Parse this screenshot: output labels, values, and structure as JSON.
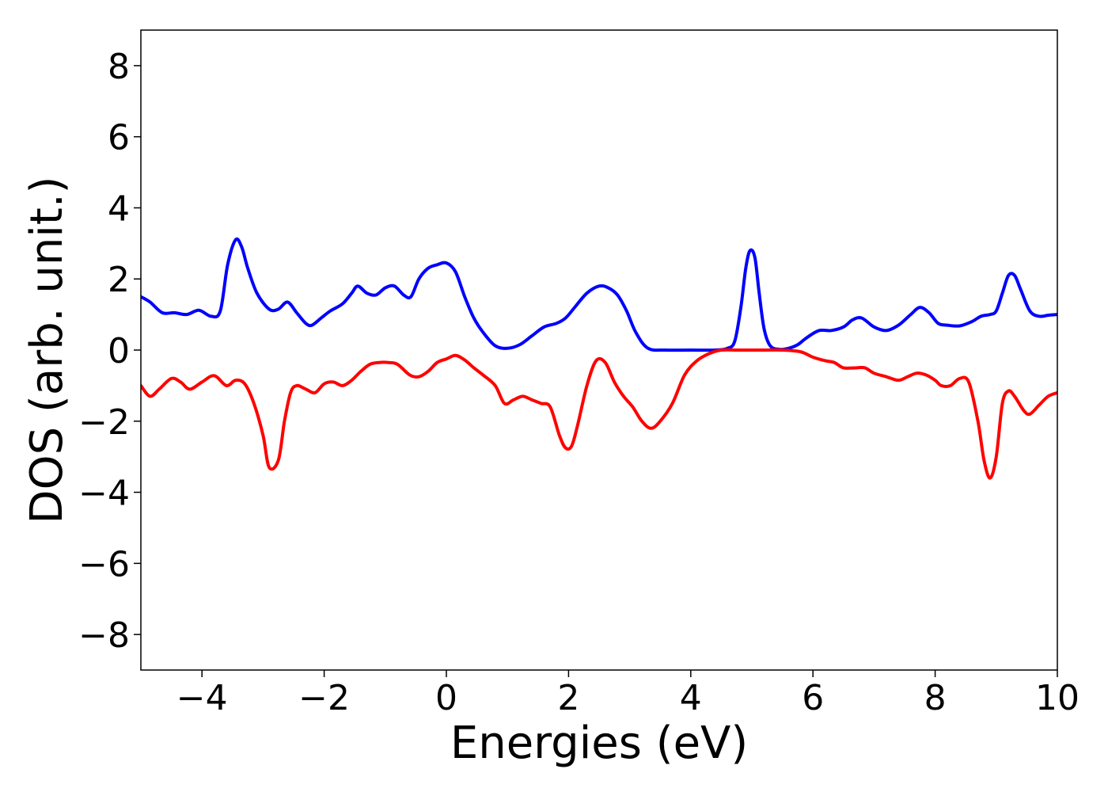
{
  "chart_data": {
    "type": "line",
    "title": "",
    "xlabel": "Energies (eV)",
    "ylabel": "DOS (arb. unit.)",
    "xlim": [
      -5,
      10
    ],
    "ylim": [
      -9,
      9
    ],
    "xticks": [
      -4,
      -2,
      0,
      2,
      4,
      6,
      8,
      10
    ],
    "xtick_labels": [
      "−4",
      "−2",
      "0",
      "2",
      "4",
      "6",
      "8",
      "10"
    ],
    "yticks": [
      -8,
      -6,
      -4,
      -2,
      0,
      2,
      4,
      6,
      8
    ],
    "ytick_labels": [
      "−8",
      "−6",
      "−4",
      "−2",
      "0",
      "2",
      "4",
      "6",
      "8"
    ],
    "grid": false,
    "legend": false,
    "series": [
      {
        "color": "#0000ff",
        "x": [
          -5.0,
          -4.85,
          -4.65,
          -4.45,
          -4.25,
          -4.05,
          -3.85,
          -3.7,
          -3.58,
          -3.45,
          -3.35,
          -3.25,
          -3.1,
          -2.9,
          -2.75,
          -2.6,
          -2.45,
          -2.3,
          -2.2,
          -2.05,
          -1.9,
          -1.7,
          -1.55,
          -1.45,
          -1.3,
          -1.15,
          -1.0,
          -0.85,
          -0.7,
          -0.58,
          -0.45,
          -0.3,
          -0.15,
          0.0,
          0.15,
          0.3,
          0.45,
          0.6,
          0.8,
          1.0,
          1.2,
          1.4,
          1.6,
          1.8,
          1.95,
          2.1,
          2.3,
          2.5,
          2.65,
          2.8,
          2.95,
          3.1,
          3.3,
          3.6,
          4.0,
          4.4,
          4.6,
          4.72,
          4.82,
          4.9,
          4.97,
          5.05,
          5.12,
          5.2,
          5.3,
          5.45,
          5.6,
          5.75,
          5.9,
          6.1,
          6.3,
          6.5,
          6.65,
          6.8,
          7.0,
          7.2,
          7.4,
          7.6,
          7.75,
          7.9,
          8.05,
          8.2,
          8.4,
          8.6,
          8.75,
          8.9,
          9.0,
          9.1,
          9.2,
          9.3,
          9.4,
          9.55,
          9.7,
          9.85,
          10.0
        ],
        "y": [
          1.5,
          1.35,
          1.05,
          1.05,
          1.0,
          1.12,
          0.95,
          1.1,
          2.4,
          3.1,
          2.9,
          2.3,
          1.6,
          1.15,
          1.15,
          1.35,
          1.05,
          0.75,
          0.7,
          0.9,
          1.1,
          1.3,
          1.6,
          1.8,
          1.6,
          1.55,
          1.75,
          1.8,
          1.55,
          1.5,
          2.0,
          2.3,
          2.4,
          2.45,
          2.2,
          1.5,
          0.9,
          0.5,
          0.12,
          0.05,
          0.15,
          0.4,
          0.65,
          0.75,
          0.9,
          1.2,
          1.6,
          1.8,
          1.75,
          1.55,
          1.1,
          0.5,
          0.05,
          0.0,
          0.0,
          0.0,
          0.05,
          0.25,
          1.2,
          2.3,
          2.8,
          2.6,
          1.6,
          0.6,
          0.12,
          0.02,
          0.05,
          0.15,
          0.35,
          0.55,
          0.55,
          0.65,
          0.85,
          0.9,
          0.65,
          0.55,
          0.7,
          1.0,
          1.2,
          1.05,
          0.75,
          0.7,
          0.68,
          0.8,
          0.95,
          1.0,
          1.1,
          1.6,
          2.1,
          2.1,
          1.7,
          1.1,
          0.95,
          0.98,
          1.0
        ]
      },
      {
        "color": "#ff0000",
        "x": [
          -5.0,
          -4.85,
          -4.7,
          -4.5,
          -4.35,
          -4.2,
          -4.0,
          -3.8,
          -3.6,
          -3.45,
          -3.3,
          -3.15,
          -3.0,
          -2.9,
          -2.75,
          -2.65,
          -2.55,
          -2.45,
          -2.3,
          -2.15,
          -2.0,
          -1.85,
          -1.7,
          -1.55,
          -1.4,
          -1.25,
          -1.1,
          -0.95,
          -0.8,
          -0.6,
          -0.45,
          -0.3,
          -0.15,
          0.0,
          0.15,
          0.3,
          0.45,
          0.6,
          0.8,
          0.95,
          1.1,
          1.25,
          1.4,
          1.55,
          1.7,
          1.85,
          1.95,
          2.05,
          2.15,
          2.3,
          2.45,
          2.6,
          2.75,
          2.9,
          3.05,
          3.2,
          3.35,
          3.5,
          3.7,
          3.9,
          4.1,
          4.3,
          4.5,
          4.8,
          5.2,
          5.5,
          5.8,
          6.0,
          6.2,
          6.35,
          6.5,
          6.7,
          6.85,
          7.0,
          7.2,
          7.4,
          7.55,
          7.7,
          7.85,
          8.0,
          8.1,
          8.25,
          8.4,
          8.55,
          8.7,
          8.8,
          8.9,
          9.0,
          9.1,
          9.2,
          9.3,
          9.45,
          9.55,
          9.7,
          9.85,
          10.0
        ],
        "y": [
          -1.0,
          -1.3,
          -1.1,
          -0.8,
          -0.9,
          -1.1,
          -0.9,
          -0.72,
          -1.0,
          -0.85,
          -0.95,
          -1.5,
          -2.4,
          -3.3,
          -3.1,
          -2.0,
          -1.2,
          -1.0,
          -1.1,
          -1.2,
          -0.95,
          -0.9,
          -1.0,
          -0.85,
          -0.6,
          -0.4,
          -0.35,
          -0.35,
          -0.4,
          -0.7,
          -0.75,
          -0.6,
          -0.35,
          -0.25,
          -0.15,
          -0.28,
          -0.5,
          -0.7,
          -1.0,
          -1.5,
          -1.4,
          -1.3,
          -1.4,
          -1.5,
          -1.6,
          -2.4,
          -2.75,
          -2.7,
          -2.1,
          -1.0,
          -0.3,
          -0.35,
          -0.9,
          -1.3,
          -1.6,
          -2.0,
          -2.2,
          -2.0,
          -1.5,
          -0.7,
          -0.3,
          -0.1,
          0.0,
          0.0,
          0.0,
          0.0,
          -0.05,
          -0.2,
          -0.3,
          -0.35,
          -0.5,
          -0.5,
          -0.5,
          -0.65,
          -0.75,
          -0.85,
          -0.75,
          -0.65,
          -0.7,
          -0.85,
          -1.0,
          -1.0,
          -0.8,
          -0.9,
          -2.0,
          -3.1,
          -3.6,
          -3.0,
          -1.5,
          -1.15,
          -1.3,
          -1.7,
          -1.8,
          -1.55,
          -1.3,
          -1.2
        ]
      }
    ]
  }
}
